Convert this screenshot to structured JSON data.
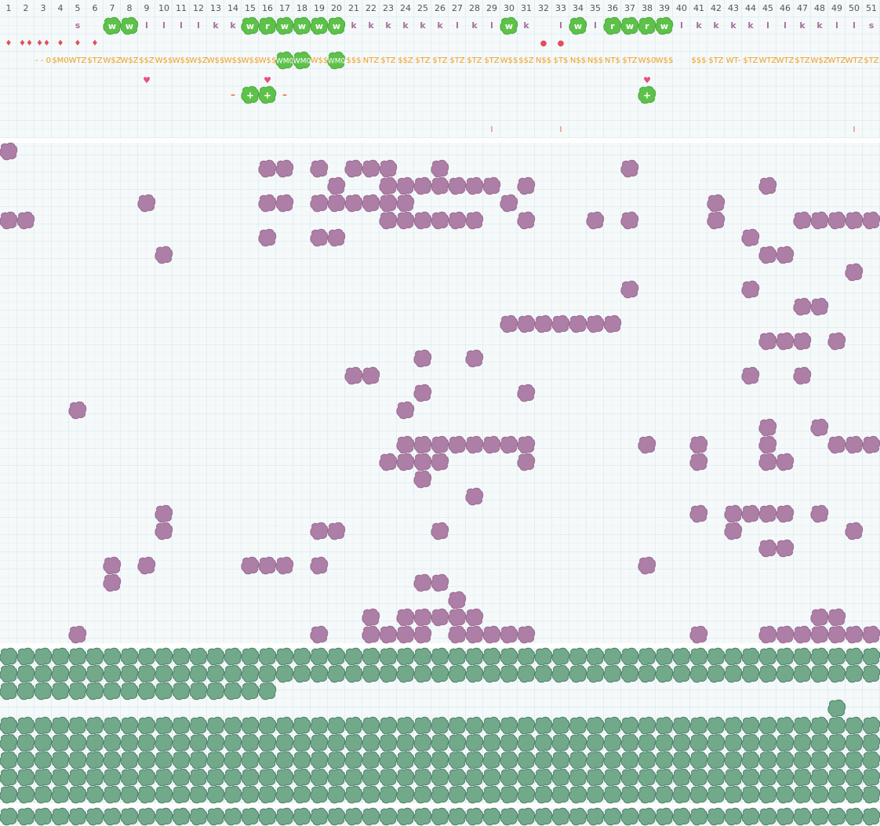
{
  "columns": [
    1,
    2,
    3,
    4,
    5,
    6,
    7,
    8,
    9,
    10,
    11,
    12,
    13,
    14,
    15,
    16,
    17,
    18,
    19,
    20,
    21,
    22,
    23,
    24,
    25,
    26,
    27,
    28,
    29,
    30,
    31,
    32,
    33,
    34,
    35,
    36,
    37,
    38,
    39,
    40,
    41,
    42,
    43,
    44,
    45,
    46,
    47,
    48,
    49,
    50,
    51
  ],
  "letters": [
    null,
    null,
    null,
    null,
    "s",
    null,
    "w",
    "w",
    "l",
    "l",
    "l",
    "l",
    "k",
    "k",
    "w",
    "r",
    "w",
    "w",
    "w",
    "w",
    "k",
    "k",
    "k",
    "k",
    "k",
    "k",
    "l",
    "k",
    "l",
    "w",
    "k",
    null,
    "l",
    "w",
    "l",
    "r",
    "w",
    "r",
    "w",
    "l",
    "k",
    "k",
    "k",
    "k",
    "l",
    "l",
    "k",
    "k",
    "l",
    "l",
    "s"
  ],
  "letter_badge_columns": [
    7,
    8,
    15,
    16,
    17,
    18,
    19,
    20,
    30,
    34,
    36,
    37,
    38,
    39
  ],
  "symbols": [
    "♦",
    "♦♦",
    "♦♦",
    "♦",
    "♦",
    "♦",
    null,
    null,
    null,
    null,
    null,
    null,
    null,
    null,
    null,
    null,
    null,
    null,
    null,
    null,
    null,
    null,
    null,
    null,
    null,
    null,
    null,
    null,
    null,
    null,
    null,
    "●",
    "●",
    null,
    null,
    null,
    null,
    null,
    null,
    null,
    null,
    null,
    null,
    null,
    null,
    null,
    null,
    null,
    null,
    null,
    null
  ],
  "codes": [
    null,
    null,
    "- - 0",
    "$M0",
    "WTZ",
    "$TZ",
    "W$Z",
    "W$Z",
    "$$Z",
    "W$$",
    "W$$",
    "W$Z",
    "W$$",
    "W$$",
    "W$$",
    "W$$",
    "WM0",
    "WM0",
    "W$$",
    "WM0",
    "$$$",
    "NTZ",
    "$TZ",
    "$$Z",
    "$TZ",
    "$TZ",
    "$TZ",
    "$TZ",
    "$TZ",
    "W$$",
    "$$Z",
    "N$$",
    "$T$",
    "N$$",
    "N$$",
    "NT$",
    "$TZ",
    "W$0",
    "W$$",
    null,
    "$$$",
    "$TZ",
    "WT-",
    "$TZ",
    "WTZ",
    "WTZ",
    "$TZ",
    "W$Z",
    "WTZ",
    "WTZ",
    "$TZ"
  ],
  "code_badge_columns": [
    17,
    18,
    20
  ],
  "heart": "♥",
  "heart_columns": [
    9,
    16,
    38
  ],
  "signs": [
    null,
    null,
    null,
    null,
    null,
    null,
    null,
    null,
    null,
    null,
    null,
    null,
    null,
    "–",
    "+",
    "+",
    "–",
    null,
    null,
    null,
    null,
    null,
    null,
    null,
    null,
    null,
    null,
    null,
    null,
    null,
    null,
    null,
    null,
    null,
    null,
    null,
    null,
    "+",
    null,
    null,
    null,
    null,
    null,
    null,
    null,
    null,
    null,
    null,
    null,
    null,
    null
  ],
  "sign_badge_columns": [
    15,
    16,
    38
  ],
  "ticks": [
    null,
    null,
    null,
    null,
    null,
    null,
    null,
    null,
    null,
    null,
    null,
    null,
    null,
    null,
    null,
    null,
    null,
    null,
    null,
    null,
    null,
    null,
    null,
    null,
    null,
    null,
    null,
    null,
    "I",
    null,
    null,
    null,
    "I",
    null,
    null,
    null,
    null,
    null,
    null,
    null,
    null,
    null,
    null,
    null,
    null,
    null,
    null,
    null,
    null,
    "I",
    null
  ],
  "purple_rows": [
    [
      1
    ],
    [
      16,
      17,
      19,
      21,
      22,
      23,
      26,
      37
    ],
    [
      20,
      23,
      24,
      25,
      26,
      27,
      28,
      29,
      31,
      45
    ],
    [
      9,
      16,
      17,
      19,
      20,
      21,
      22,
      23,
      24,
      30,
      42
    ],
    [
      1,
      2,
      23,
      24,
      25,
      26,
      27,
      28,
      31,
      35,
      37,
      42,
      47,
      48,
      49,
      50,
      51
    ],
    [
      16,
      19,
      20,
      44
    ],
    [
      10,
      45,
      46
    ],
    [
      50
    ],
    [
      37,
      44
    ],
    [
      47,
      48
    ],
    [
      30,
      31,
      32,
      33,
      34,
      35,
      36
    ],
    [
      45,
      46,
      47,
      49
    ],
    [
      25,
      28
    ],
    [
      21,
      22,
      44,
      47
    ],
    [
      25,
      31
    ],
    [
      5,
      24
    ],
    [
      45,
      48
    ],
    [
      24,
      25,
      26,
      27,
      28,
      29,
      30,
      31,
      38,
      41,
      45,
      49,
      50,
      51
    ],
    [
      23,
      24,
      25,
      26,
      31,
      41,
      45,
      46
    ],
    [
      25
    ],
    [
      28
    ],
    [
      10,
      41,
      43,
      44,
      45,
      46,
      48
    ],
    [
      10,
      19,
      20,
      26,
      43,
      50
    ],
    [
      45,
      46
    ],
    [
      7,
      9,
      15,
      16,
      17,
      19,
      38
    ],
    [
      7,
      25,
      26
    ],
    [
      27
    ],
    [
      22,
      24,
      25,
      26,
      27,
      28,
      48,
      49
    ],
    [
      5,
      19,
      22,
      23,
      24,
      25,
      27,
      28,
      29,
      30,
      31,
      41,
      45,
      46,
      47,
      48,
      49,
      50,
      51
    ]
  ],
  "green_rows": [
    [
      1,
      2,
      3,
      4,
      5,
      6,
      7,
      8,
      9,
      10,
      11,
      12,
      13,
      14,
      15,
      16,
      17,
      18,
      19,
      20,
      21,
      22,
      23,
      24,
      25,
      26,
      27,
      28,
      29,
      30,
      31,
      32,
      33,
      34,
      35,
      36,
      37,
      38,
      39,
      40,
      41,
      42,
      43,
      44,
      45,
      46,
      47,
      48,
      49,
      50,
      51
    ],
    [
      1,
      2,
      3,
      4,
      5,
      6,
      7,
      8,
      9,
      10,
      11,
      12,
      13,
      14,
      15,
      16,
      17,
      18,
      19,
      20,
      21,
      22,
      23,
      24,
      25,
      26,
      27,
      28,
      29,
      30,
      31,
      32,
      33,
      34,
      35,
      36,
      37,
      38,
      39,
      40,
      41,
      42,
      43,
      44,
      45,
      46,
      47,
      48,
      49,
      50,
      51
    ],
    [
      1,
      2,
      3,
      4,
      5,
      6,
      7,
      8,
      9,
      10,
      11,
      12,
      13,
      14,
      15,
      16
    ],
    [
      49
    ],
    [
      1,
      2,
      3,
      4,
      5,
      6,
      7,
      8,
      9,
      10,
      11,
      12,
      13,
      14,
      15,
      16,
      17,
      18,
      19,
      20,
      21,
      22,
      23,
      24,
      25,
      26,
      27,
      28,
      29,
      30,
      31,
      32,
      33,
      34,
      35,
      36,
      37,
      38,
      39,
      40,
      41,
      42,
      43,
      44,
      45,
      46,
      47,
      48,
      49,
      50,
      51
    ],
    [
      1,
      2,
      3,
      4,
      5,
      6,
      7,
      8,
      9,
      10,
      11,
      12,
      13,
      14,
      15,
      16,
      17,
      18,
      19,
      20,
      21,
      22,
      23,
      24,
      25,
      26,
      27,
      28,
      29,
      30,
      31,
      32,
      33,
      34,
      35,
      36,
      37,
      38,
      39,
      40,
      41,
      42,
      43,
      44,
      45,
      46,
      47,
      48,
      49,
      50,
      51
    ],
    [
      1,
      2,
      3,
      4,
      5,
      6,
      7,
      8,
      9,
      10,
      11,
      12,
      13,
      14,
      15,
      16,
      17,
      18,
      19,
      20,
      21,
      22,
      23,
      24,
      25,
      26,
      27,
      28,
      29,
      30,
      31,
      32,
      33,
      34,
      35,
      36,
      37,
      38,
      39,
      40,
      41,
      42,
      43,
      44,
      45,
      46,
      47,
      48,
      49,
      50,
      51
    ],
    [
      1,
      2,
      3,
      4,
      5,
      6,
      7,
      8,
      9,
      10,
      11,
      12,
      13,
      14,
      15,
      16,
      17,
      18,
      19,
      20,
      21,
      22,
      23,
      24,
      25,
      26,
      27,
      28,
      29,
      30,
      31,
      32,
      33,
      34,
      35,
      36,
      37,
      38,
      39,
      40,
      41,
      42,
      43,
      44,
      45,
      46,
      47,
      48,
      49,
      50,
      51
    ],
    [
      1,
      2,
      3,
      4,
      5,
      6,
      7,
      8,
      9,
      10,
      11,
      12,
      13,
      14,
      15,
      16,
      17,
      18,
      19,
      20,
      21,
      22,
      23,
      24,
      25,
      26,
      27,
      28,
      29,
      30,
      31,
      32,
      33,
      34,
      35,
      36,
      37,
      38,
      39,
      40,
      41,
      42,
      43,
      44,
      45,
      46,
      47,
      48,
      49,
      50,
      51
    ],
    [
      1,
      2,
      3,
      4,
      5,
      6,
      7,
      8,
      9,
      10,
      11,
      12,
      13,
      14,
      15,
      16,
      17,
      18,
      19,
      20,
      21,
      22,
      23,
      24,
      25,
      26,
      27,
      28,
      29,
      30,
      31,
      32,
      33,
      34,
      35,
      36,
      37,
      38,
      39,
      40,
      41,
      42,
      43,
      44,
      45,
      46,
      47,
      48,
      49,
      50,
      51
    ]
  ]
}
